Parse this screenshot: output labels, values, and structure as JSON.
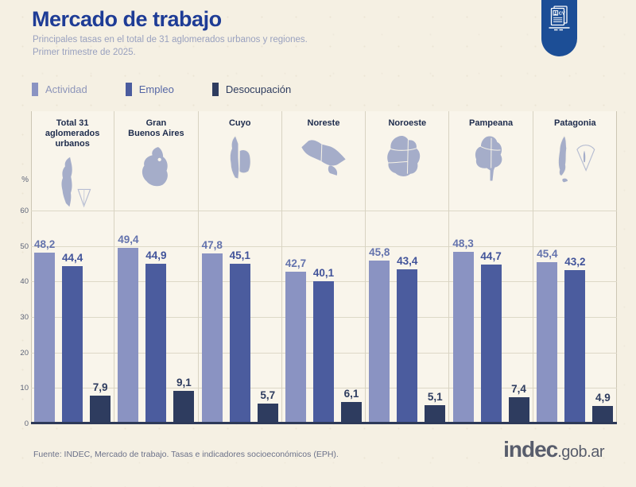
{
  "header": {
    "title": "Mercado de trabajo",
    "subtitle_line1": "Principales tasas en el total de 31 aglomerados urbanos y regiones.",
    "subtitle_line2": "Primer trimestre de 2025.",
    "title_color": "#1e3c96"
  },
  "badge": {
    "icon": "cv-document-icon",
    "label": "CV",
    "color": "#1c4e96"
  },
  "legend": {
    "items": [
      {
        "label": "Actividad",
        "color": "#8a93c2",
        "text_color": "#8d95b9"
      },
      {
        "label": "Empleo",
        "color": "#4b5c9e",
        "text_color": "#5566a5"
      },
      {
        "label": "Desocupación",
        "color": "#2e3c5f",
        "text_color": "#2e3c5f"
      }
    ]
  },
  "chart_data": {
    "type": "bar",
    "title": "Mercado de trabajo",
    "xlabel": "",
    "ylabel": "%",
    "ylim": [
      0,
      65
    ],
    "yticks": [
      0,
      10,
      20,
      30,
      40,
      50,
      60
    ],
    "grid": true,
    "legend_position": "top-left",
    "categories": [
      "Total 31\naglomerados\nurbanos",
      "Gran\nBuenos Aires",
      "Cuyo",
      "Noreste",
      "Noroeste",
      "Pampeana",
      "Patagonia"
    ],
    "category_maps": [
      "argentina",
      "gran-buenos-aires",
      "cuyo",
      "noreste",
      "noroeste",
      "pampeana",
      "patagonia"
    ],
    "series": [
      {
        "name": "Actividad",
        "color": "#8a93c2",
        "label_color": "#6473ad",
        "values": [
          48.2,
          49.4,
          47.8,
          42.7,
          45.8,
          48.3,
          45.4
        ],
        "labels": [
          "48,2",
          "49,4",
          "47,8",
          "42,7",
          "45,8",
          "48,3",
          "45,4"
        ]
      },
      {
        "name": "Empleo",
        "color": "#4b5c9e",
        "label_color": "#41539a",
        "values": [
          44.4,
          44.9,
          45.1,
          40.1,
          43.4,
          44.7,
          43.2
        ],
        "labels": [
          "44,4",
          "44,9",
          "45,1",
          "40,1",
          "43,4",
          "44,7",
          "43,2"
        ]
      },
      {
        "name": "Desocupación",
        "color": "#2e3c5f",
        "label_color": "#2e3c5f",
        "values": [
          7.9,
          9.1,
          5.7,
          6.1,
          5.1,
          7.4,
          4.9
        ],
        "labels": [
          "7,9",
          "9,1",
          "5,7",
          "6,1",
          "5,1",
          "7,4",
          "4,9"
        ]
      }
    ]
  },
  "footer": {
    "source": "Fuente: INDEC, Mercado de trabajo. Tasas e indicadores socioeconómicos (EPH).",
    "logo_main": "indec",
    "logo_suffix": ".gob.ar"
  }
}
